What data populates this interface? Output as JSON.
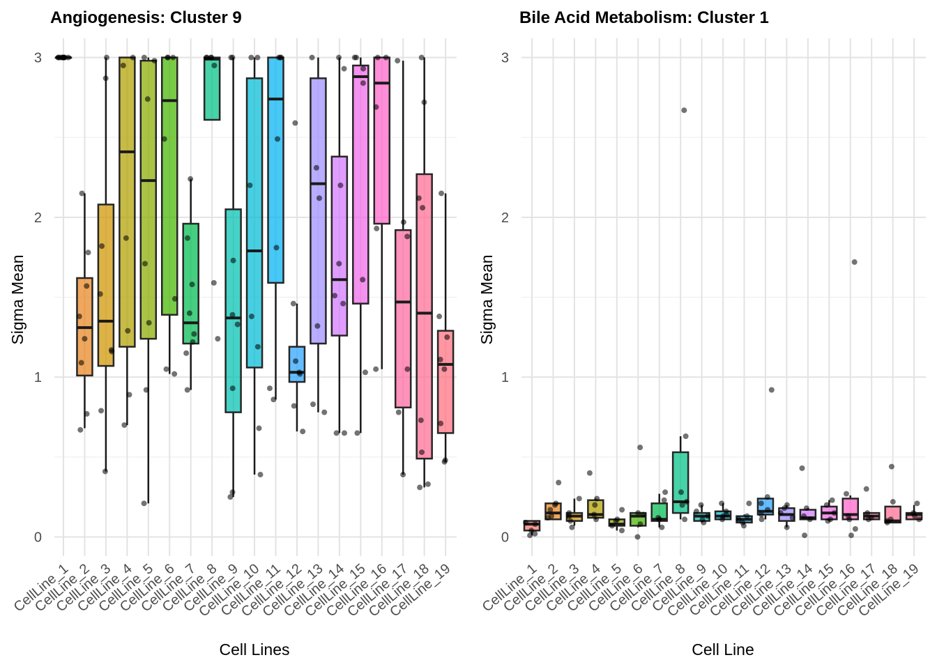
{
  "chart_data": [
    {
      "type": "box",
      "title": "Angiogenesis: Cluster 9",
      "xlabel": "Cell Lines",
      "ylabel": "Sigma Mean",
      "ylim": [
        -0.12,
        3.12
      ],
      "yticks": [
        0,
        1,
        2,
        3
      ],
      "grid": true,
      "legend": "none",
      "categories": [
        "CellLine_1",
        "CellLine_2",
        "CellLine_3",
        "CellLine_4",
        "CellLine_5",
        "CellLine_6",
        "CellLine_7",
        "CellLine_8",
        "CellLine_9",
        "CellLine_10",
        "CellLine_11",
        "CellLine_12",
        "CellLine_13",
        "CellLine_14",
        "CellLine_15",
        "CellLine_16",
        "CellLine_17",
        "CellLine_18",
        "CellLine_19"
      ],
      "boxes": [
        {
          "low": 3.0,
          "q1": 3.0,
          "median": 3.0,
          "q3": 3.0,
          "high": 3.0
        },
        {
          "low": 0.68,
          "q1": 1.01,
          "median": 1.31,
          "q3": 1.62,
          "high": 2.15
        },
        {
          "low": 0.41,
          "q1": 1.07,
          "median": 1.35,
          "q3": 2.08,
          "high": 3.0
        },
        {
          "low": 0.7,
          "q1": 1.19,
          "median": 2.41,
          "q3": 3.0,
          "high": 3.0
        },
        {
          "low": 0.21,
          "q1": 1.24,
          "median": 2.23,
          "q3": 2.98,
          "high": 3.0
        },
        {
          "low": 1.02,
          "q1": 1.39,
          "median": 2.73,
          "q3": 3.0,
          "high": 3.0
        },
        {
          "low": 0.92,
          "q1": 1.21,
          "median": 1.34,
          "q3": 1.96,
          "high": 2.24
        },
        {
          "low": 2.61,
          "q1": 2.61,
          "median": 2.99,
          "q3": 3.0,
          "high": 3.0
        },
        {
          "low": 0.25,
          "q1": 0.78,
          "median": 1.37,
          "q3": 2.05,
          "high": 3.0
        },
        {
          "low": 0.39,
          "q1": 1.06,
          "median": 1.79,
          "q3": 2.87,
          "high": 3.0
        },
        {
          "low": 0.86,
          "q1": 1.59,
          "median": 2.74,
          "q3": 3.0,
          "high": 3.0
        },
        {
          "low": 0.66,
          "q1": 0.97,
          "median": 1.03,
          "q3": 1.19,
          "high": 1.46
        },
        {
          "low": 0.78,
          "q1": 1.21,
          "median": 2.21,
          "q3": 2.87,
          "high": 3.0
        },
        {
          "low": 0.65,
          "q1": 1.26,
          "median": 1.61,
          "q3": 2.38,
          "high": 3.0
        },
        {
          "low": 0.65,
          "q1": 1.46,
          "median": 2.88,
          "q3": 2.95,
          "high": 3.0
        },
        {
          "low": 1.05,
          "q1": 1.96,
          "median": 2.84,
          "q3": 3.0,
          "high": 3.0
        },
        {
          "low": 0.39,
          "q1": 0.81,
          "median": 1.47,
          "q3": 1.92,
          "high": 2.98
        },
        {
          "low": 0.31,
          "q1": 0.49,
          "median": 1.4,
          "q3": 2.27,
          "high": 3.0
        },
        {
          "low": 0.47,
          "q1": 0.65,
          "median": 1.08,
          "q3": 1.29,
          "high": 2.15
        }
      ],
      "points": [
        [
          3.0,
          3.0,
          3.0,
          3.0,
          3.0,
          3.0,
          3.0,
          3.0,
          3.0,
          3.0
        ],
        [
          2.15,
          1.78,
          1.57,
          1.38,
          1.24,
          1.09,
          0.77,
          0.67
        ],
        [
          3.0,
          2.87,
          1.82,
          1.52,
          1.17,
          1.16,
          0.79,
          0.41
        ],
        [
          3.0,
          2.95,
          1.87,
          1.29,
          0.89,
          0.7
        ],
        [
          3.0,
          2.98,
          2.74,
          1.71,
          1.34,
          0.92,
          0.21
        ],
        [
          3.0,
          3.0,
          3.0,
          2.49,
          1.49,
          1.05,
          1.02
        ],
        [
          2.24,
          1.87,
          1.58,
          1.4,
          1.27,
          1.22,
          1.15,
          0.92
        ],
        [
          3.0,
          3.0,
          3.0,
          3.0,
          2.95,
          1.59,
          1.24
        ],
        [
          3.0,
          3.0,
          1.73,
          1.39,
          1.33,
          0.93,
          0.28,
          0.25
        ],
        [
          3.0,
          3.0,
          2.2,
          1.38,
          1.19,
          0.68,
          0.39
        ],
        [
          3.0,
          3.0,
          3.0,
          2.49,
          1.81,
          0.93,
          0.86
        ],
        [
          2.59,
          1.46,
          1.1,
          1.03,
          1.02,
          0.82,
          0.66
        ],
        [
          3.0,
          2.31,
          2.12,
          1.32,
          0.83,
          0.78
        ],
        [
          3.0,
          2.93,
          2.2,
          1.71,
          1.51,
          1.46,
          0.65,
          0.65
        ],
        [
          3.0,
          3.0,
          2.93,
          2.84,
          1.61,
          1.03,
          0.65
        ],
        [
          3.0,
          3.0,
          2.69,
          1.93,
          1.05
        ],
        [
          1.97,
          1.88,
          1.05,
          0.78,
          0.39,
          2.98
        ],
        [
          3.0,
          2.72,
          2.12,
          2.06,
          0.73,
          0.53,
          0.33,
          0.31
        ],
        [
          2.15,
          1.38,
          1.25,
          1.11,
          1.05,
          0.71,
          0.48,
          0.47
        ]
      ]
    },
    {
      "type": "box",
      "title": "Bile Acid Metabolism: Cluster 1",
      "xlabel": "Cell Line",
      "ylabel": "Sigma Mean",
      "ylim": [
        -0.12,
        3.12
      ],
      "yticks": [
        0,
        1,
        2,
        3
      ],
      "grid": true,
      "legend": "none",
      "categories": [
        "CellLine_1",
        "CellLine_2",
        "CellLine_3",
        "CellLine_4",
        "CellLine_5",
        "CellLine_6",
        "CellLine_7",
        "CellLine_8",
        "CellLine_9",
        "CellLine_10",
        "CellLine_11",
        "CellLine_12",
        "CellLine_13",
        "CellLine_14",
        "CellLine_15",
        "CellLine_16",
        "CellLine_17",
        "CellLine_18",
        "CellLine_19"
      ],
      "boxes": [
        {
          "low": 0.01,
          "q1": 0.04,
          "median": 0.08,
          "q3": 0.1,
          "high": 0.1
        },
        {
          "low": 0.11,
          "q1": 0.11,
          "median": 0.15,
          "q3": 0.21,
          "high": 0.21
        },
        {
          "low": 0.07,
          "q1": 0.1,
          "median": 0.13,
          "q3": 0.15,
          "high": 0.24
        },
        {
          "low": 0.11,
          "q1": 0.12,
          "median": 0.14,
          "q3": 0.23,
          "high": 0.24
        },
        {
          "low": 0.04,
          "q1": 0.07,
          "median": 0.08,
          "q3": 0.11,
          "high": 0.11
        },
        {
          "low": 0.06,
          "q1": 0.07,
          "median": 0.13,
          "q3": 0.15,
          "high": 0.15
        },
        {
          "low": 0.06,
          "q1": 0.1,
          "median": 0.11,
          "q3": 0.21,
          "high": 0.27
        },
        {
          "low": 0.11,
          "q1": 0.15,
          "median": 0.22,
          "q3": 0.53,
          "high": 0.63
        },
        {
          "low": 0.09,
          "q1": 0.1,
          "median": 0.13,
          "q3": 0.15,
          "high": 0.2
        },
        {
          "low": 0.11,
          "q1": 0.11,
          "median": 0.13,
          "q3": 0.16,
          "high": 0.21
        },
        {
          "low": 0.08,
          "q1": 0.09,
          "median": 0.11,
          "q3": 0.13,
          "high": 0.14
        },
        {
          "low": 0.11,
          "q1": 0.14,
          "median": 0.16,
          "q3": 0.24,
          "high": 0.24
        },
        {
          "low": 0.06,
          "q1": 0.1,
          "median": 0.14,
          "q3": 0.18,
          "high": 0.2
        },
        {
          "low": 0.11,
          "q1": 0.11,
          "median": 0.12,
          "q3": 0.17,
          "high": 0.18
        },
        {
          "low": 0.1,
          "q1": 0.11,
          "median": 0.15,
          "q3": 0.19,
          "high": 0.23
        },
        {
          "low": 0.11,
          "q1": 0.11,
          "median": 0.14,
          "q3": 0.24,
          "high": 0.26
        },
        {
          "low": 0.11,
          "q1": 0.11,
          "median": 0.13,
          "q3": 0.15,
          "high": 0.15
        },
        {
          "low": 0.09,
          "q1": 0.09,
          "median": 0.1,
          "q3": 0.19,
          "high": 0.19
        },
        {
          "low": 0.11,
          "q1": 0.11,
          "median": 0.14,
          "q3": 0.15,
          "high": 0.2
        }
      ],
      "points": [
        [
          0.09,
          0.08,
          0.04,
          0.02,
          0.01
        ],
        [
          0.34,
          0.21,
          0.2,
          0.17,
          0.13,
          0.12
        ],
        [
          0.24,
          0.15,
          0.13,
          0.1,
          0.06
        ],
        [
          0.4,
          0.24,
          0.2,
          0.14,
          0.11
        ],
        [
          0.17,
          0.11,
          0.1,
          0.07,
          0.04
        ],
        [
          0.56,
          0.15,
          0.14,
          0.08,
          0.0
        ],
        [
          0.28,
          0.23,
          0.12,
          0.11,
          0.06
        ],
        [
          2.67,
          0.63,
          0.28,
          0.22,
          0.2,
          0.11
        ],
        [
          0.2,
          0.16,
          0.13,
          0.11,
          0.09
        ],
        [
          0.21,
          0.16,
          0.14,
          0.13,
          0.11
        ],
        [
          0.21,
          0.13,
          0.11,
          0.09,
          0.07
        ],
        [
          0.92,
          0.25,
          0.21,
          0.17,
          0.14,
          0.11
        ],
        [
          0.2,
          0.18,
          0.15,
          0.12,
          0.06
        ],
        [
          0.43,
          0.18,
          0.13,
          0.11,
          0.01
        ],
        [
          0.23,
          0.2,
          0.15,
          0.11,
          0.1
        ],
        [
          1.72,
          0.27,
          0.13,
          0.11,
          0.05,
          0.01
        ],
        [
          0.3,
          0.15,
          0.12,
          0.11
        ],
        [
          0.44,
          0.22,
          0.11,
          0.1,
          0.09
        ],
        [
          0.21,
          0.15,
          0.13,
          0.11
        ]
      ]
    }
  ],
  "colors": {
    "palette": [
      "#F8766D",
      "#E7851E",
      "#D09400",
      "#B2A100",
      "#89AC00",
      "#45B500",
      "#00BC51",
      "#00C087",
      "#00C0B2",
      "#00BCD6",
      "#00B3F2",
      "#29A3FF",
      "#9C8DFF",
      "#D277FF",
      "#F166E8",
      "#FF61C7",
      "#FF68A1",
      "#FF6C91",
      "#FF6F80"
    ]
  }
}
